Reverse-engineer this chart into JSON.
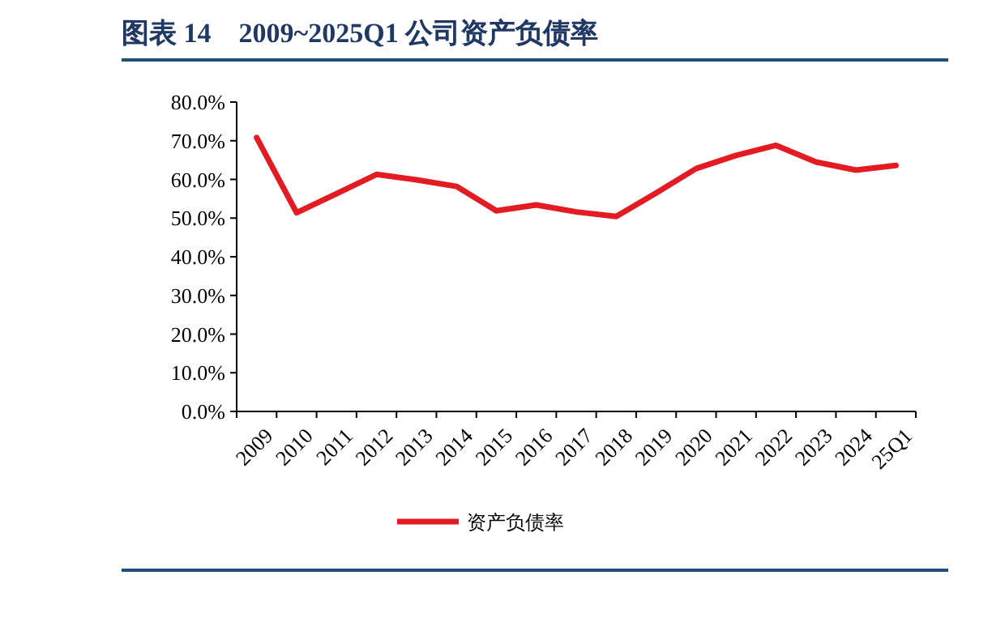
{
  "chart_data": {
    "type": "line",
    "title": "图表 14　2009~2025Q1 公司资产负债率",
    "categories": [
      "2009",
      "2010",
      "2011",
      "2012",
      "2013",
      "2014",
      "2015",
      "2016",
      "2017",
      "2018",
      "2019",
      "2020",
      "2021",
      "2022",
      "2023",
      "2024",
      "25Q1"
    ],
    "series": [
      {
        "name": "资产负债率",
        "color": "#e31b23",
        "values": [
          70.8,
          51.4,
          56.3,
          61.3,
          59.9,
          58.2,
          51.9,
          53.4,
          51.6,
          50.4,
          56.5,
          62.8,
          66.2,
          68.8,
          64.5,
          62.4,
          63.6
        ]
      }
    ],
    "ylim": [
      0,
      80
    ],
    "yticks": [
      {
        "value": 0,
        "label": "0.0%"
      },
      {
        "value": 10,
        "label": "10.0%"
      },
      {
        "value": 20,
        "label": "20.0%"
      },
      {
        "value": 30,
        "label": "30.0%"
      },
      {
        "value": 40,
        "label": "40.0%"
      },
      {
        "value": 50,
        "label": "50.0%"
      },
      {
        "value": 60,
        "label": "60.0%"
      },
      {
        "value": 70,
        "label": "70.0%"
      },
      {
        "value": 80,
        "label": "80.0%"
      }
    ],
    "grid": false,
    "legend": "bottom",
    "marker": "none",
    "line_style": "solid"
  }
}
